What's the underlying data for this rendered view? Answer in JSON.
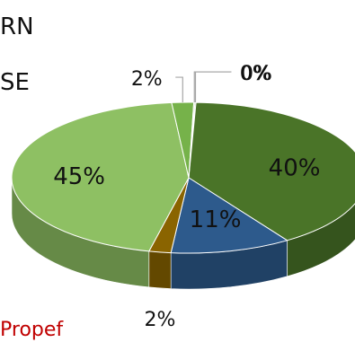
{
  "fragments": {
    "line1": "RN",
    "line2": "SE",
    "legend": "Propef"
  },
  "chart_data": {
    "type": "pie",
    "title": "",
    "slices": [
      {
        "value": 0.1,
        "label": "0%",
        "color": "#3c6521"
      },
      {
        "value": 40.0,
        "label": "40%",
        "color": "#4a7428"
      },
      {
        "value": 11.0,
        "label": "11%",
        "color": "#2d5a8c"
      },
      {
        "value": 2.0,
        "label": "2%",
        "color": "#8a6400"
      },
      {
        "value": 44.9,
        "label": "45%",
        "color": "#8ec063"
      },
      {
        "value": 2.0,
        "label": "2%",
        "color": "#76b24a"
      },
      {
        "value": 0.1,
        "label": "0%",
        "color": "#9dbd86"
      }
    ]
  }
}
